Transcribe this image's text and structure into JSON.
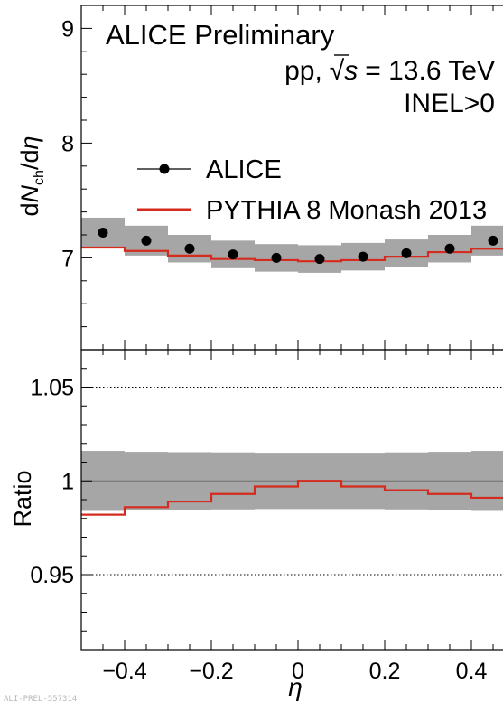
{
  "header": {
    "title": "ALICE Preliminary",
    "system_prefix": "pp,",
    "sqrt_symbol": "√",
    "sqrt_var": "s",
    "energy": "= 13.6 TeV",
    "event_class": "INEL>0"
  },
  "watermark": "ALI-PREL-557314",
  "colors": {
    "pythia": "#d42b1e",
    "band": "#a6a6a6",
    "data": "#000000"
  },
  "legend": {
    "alice": "ALICE",
    "pythia": "PYTHIA 8 Monash 2013"
  },
  "chart_data": [
    {
      "type": "scatter",
      "panel": "top",
      "ylabel": {
        "d1": "d",
        "N": "N",
        "sub": "ch",
        "slash": "/d",
        "eta": "η"
      },
      "xlim": [
        -0.5,
        0.5
      ],
      "ylim": [
        6.2,
        9.2
      ],
      "yticks": [
        7,
        8,
        9
      ],
      "ytick_labels": [
        "7",
        "8",
        "9"
      ],
      "legend_position": "top-right",
      "series": [
        {
          "name": "ALICE",
          "x": [
            -0.45,
            -0.35,
            -0.25,
            -0.15,
            -0.05,
            0.05,
            0.15,
            0.25,
            0.35,
            0.45
          ],
          "y": [
            7.22,
            7.15,
            7.08,
            7.03,
            7.0,
            6.99,
            7.01,
            7.04,
            7.08,
            7.15
          ],
          "syst": [
            0.13,
            0.13,
            0.12,
            0.12,
            0.12,
            0.12,
            0.12,
            0.12,
            0.12,
            0.13
          ]
        },
        {
          "name": "PYTHIA 8 Monash 2013",
          "bin_edges": [
            -0.5,
            -0.4,
            -0.3,
            -0.2,
            -0.1,
            0.0,
            0.1,
            0.2,
            0.3,
            0.4,
            0.5
          ],
          "values": [
            7.09,
            7.06,
            7.02,
            6.99,
            6.98,
            6.97,
            6.98,
            7.01,
            7.05,
            7.08
          ]
        }
      ]
    },
    {
      "type": "line",
      "panel": "bottom",
      "ylabel": "Ratio",
      "xlabel": "η",
      "xlim": [
        -0.5,
        0.5
      ],
      "ylim": [
        0.91,
        1.07
      ],
      "yticks": [
        0.95,
        1.0,
        1.05
      ],
      "ytick_labels": [
        "0.95",
        "1",
        "1.05"
      ],
      "xticks": [
        -0.4,
        -0.2,
        0.0,
        0.2,
        0.4
      ],
      "xtick_labels": [
        "−0.4",
        "−0.2",
        "0",
        "0.2",
        "0.4"
      ],
      "reference_lines": [
        0.95,
        1.05
      ],
      "series": [
        {
          "name": "ALICE",
          "bin_edges": [
            -0.5,
            -0.4,
            -0.3,
            -0.2,
            -0.1,
            0.0,
            0.1,
            0.2,
            0.3,
            0.4,
            0.5
          ],
          "center": [
            1,
            1,
            1,
            1,
            1,
            1,
            1,
            1,
            1,
            1
          ],
          "syst": [
            0.016,
            0.0155,
            0.0153,
            0.0152,
            0.015,
            0.015,
            0.015,
            0.0152,
            0.0155,
            0.016
          ]
        },
        {
          "name": "PYTHIA 8 Monash 2013",
          "bin_edges": [
            -0.5,
            -0.4,
            -0.3,
            -0.2,
            -0.1,
            0.0,
            0.1,
            0.2,
            0.3,
            0.4,
            0.5
          ],
          "values": [
            0.982,
            0.986,
            0.989,
            0.993,
            0.997,
            1.0,
            0.997,
            0.995,
            0.993,
            0.991
          ]
        }
      ]
    }
  ]
}
